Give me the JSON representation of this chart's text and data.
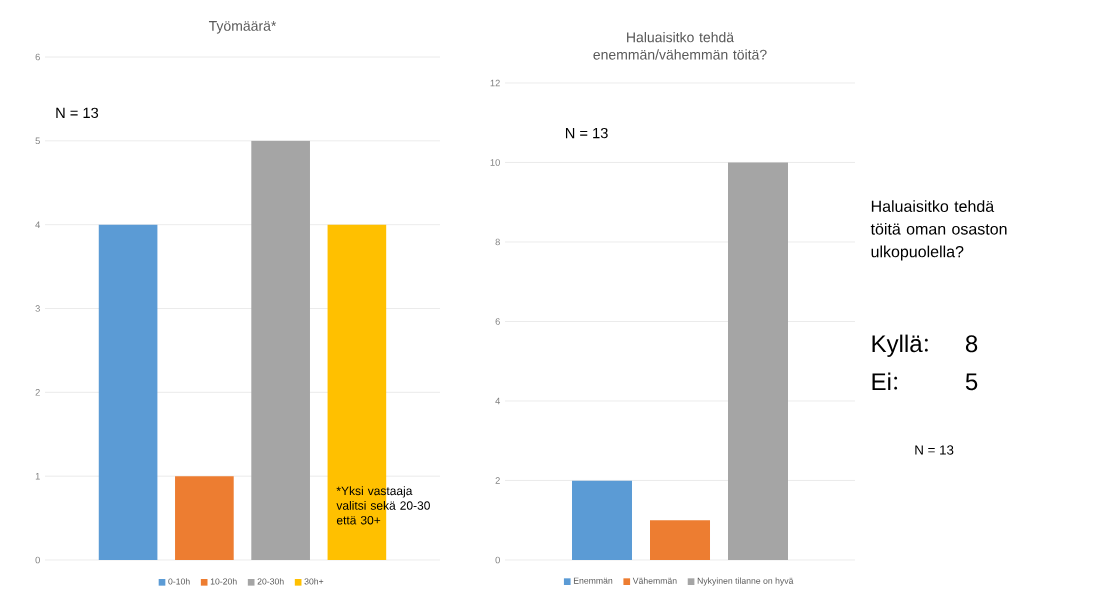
{
  "chart_data": [
    {
      "type": "bar",
      "title": "Työmäärä*",
      "categories": [
        null
      ],
      "series": [
        {
          "name": "0-10h",
          "color": "#5b9bd5",
          "values": [
            4
          ]
        },
        {
          "name": "10-20h",
          "color": "#ed7d31",
          "values": [
            1
          ]
        },
        {
          "name": "20-30h",
          "color": "#a5a5a5",
          "values": [
            5
          ]
        },
        {
          "name": "30h+",
          "color": "#ffc000",
          "values": [
            4
          ]
        }
      ],
      "ylim": [
        0,
        6
      ],
      "yticks": [
        0,
        1,
        2,
        3,
        4,
        5,
        6
      ],
      "grid": "y",
      "legend": "bottom",
      "annotations": [
        "N = 13",
        "*Yksi vastaaja valitsi sekä 20-30 että 30+"
      ]
    },
    {
      "type": "bar",
      "title": "Haluaisitko tehdä enemmän/vähemmän töitä?",
      "categories": [
        null
      ],
      "series": [
        {
          "name": "Enemmän",
          "color": "#5b9bd5",
          "values": [
            2
          ]
        },
        {
          "name": "Vähemmän",
          "color": "#ed7d31",
          "values": [
            1
          ]
        },
        {
          "name": "Nykyinen tilanne on hyvä",
          "color": "#a5a5a5",
          "values": [
            10
          ]
        }
      ],
      "ylim": [
        0,
        12
      ],
      "yticks": [
        0,
        2,
        4,
        6,
        8,
        10,
        12
      ],
      "grid": "y",
      "legend": "bottom",
      "annotations": [
        "N = 13"
      ]
    },
    {
      "type": "other",
      "title": "Haluaisitko tehdä töitä oman osaston ulkopuolella?",
      "categories": [
        "Kyllä",
        "Ei"
      ],
      "values": [
        8,
        5
      ],
      "data_labels": true,
      "annotations": [
        "N = 13"
      ]
    }
  ]
}
